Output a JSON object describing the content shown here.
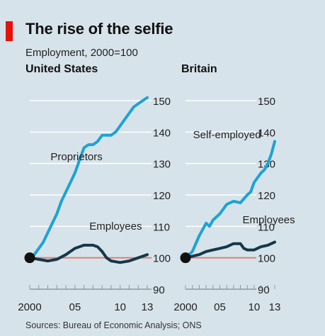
{
  "chart_data": {
    "type": "line",
    "title": "The rise of the selfie",
    "subtitle": "Employment, 2000=100",
    "source": "Sources: Bureau of Economic Analysis; ONS",
    "ylim": [
      90,
      150
    ],
    "yticks": [
      "150",
      "140",
      "130",
      "120",
      "110",
      "100",
      "90"
    ],
    "xticks": [
      "2000",
      "05",
      "10",
      "13"
    ],
    "colors": {
      "accent": "#e3120b",
      "background": "#d7e3ea",
      "baseline": "#e07a6c",
      "dark_line": "#13384a",
      "light_line": "#1ca3d6",
      "grid": "#ffffff"
    },
    "panels": [
      {
        "title": "United States",
        "series": [
          {
            "name": "Proprietors",
            "color": "#1ca3d6",
            "x": [
              2000,
              2000.5,
              2001,
              2001.5,
              2002,
              2002.5,
              2003,
              2003.5,
              2004,
              2004.5,
              2005,
              2005.5,
              2006,
              2006.5,
              2007,
              2007.5,
              2008,
              2008.5,
              2009,
              2009.5,
              2010,
              2010.5,
              2011,
              2011.5,
              2012,
              2012.5,
              2013
            ],
            "values": [
              100,
              101,
              103,
              105,
              108,
              111,
              114,
              118,
              121,
              124,
              127,
              131,
              135,
              136,
              136,
              137,
              139,
              139,
              139,
              140,
              142,
              144,
              146,
              148,
              149,
              150,
              151
            ]
          },
          {
            "name": "Employees",
            "color": "#13384a",
            "x": [
              2000,
              2001,
              2002,
              2003,
              2004,
              2005,
              2006,
              2007,
              2007.5,
              2008,
              2008.5,
              2009,
              2010,
              2011,
              2012,
              2013
            ],
            "values": [
              100,
              99.5,
              99,
              99.5,
              101,
              103,
              104,
              104,
              103.5,
              102,
              100,
              99,
              98.5,
              99,
              100,
              101
            ]
          }
        ]
      },
      {
        "title": "Britain",
        "series": [
          {
            "name": "Self-employed",
            "color": "#1ca3d6",
            "x": [
              2000,
              2001,
              2002,
              2003,
              2003.5,
              2004,
              2005,
              2006,
              2007,
              2008,
              2009,
              2009.5,
              2010,
              2011,
              2011.5,
              2012,
              2012.5,
              2013
            ],
            "values": [
              100,
              102,
              107,
              111,
              110,
              112,
              114,
              117,
              118,
              117.5,
              120,
              121,
              124,
              127,
              128,
              130,
              133,
              137
            ]
          },
          {
            "name": "Employees",
            "color": "#13384a",
            "x": [
              2000,
              2001,
              2002,
              2003,
              2004,
              2005,
              2006,
              2007,
              2008,
              2008.5,
              2009,
              2010,
              2011,
              2012,
              2013
            ],
            "values": [
              100,
              100.5,
              101,
              102,
              102.5,
              103,
              103.5,
              104.5,
              104.5,
              103,
              102.5,
              102.5,
              103.5,
              104,
              105
            ]
          }
        ]
      }
    ]
  }
}
